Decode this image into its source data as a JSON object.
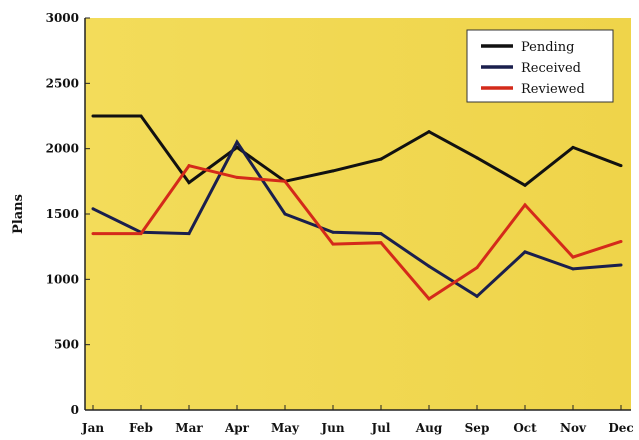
{
  "chart_data": {
    "type": "line",
    "title": "",
    "xlabel": "",
    "ylabel": "Plans",
    "categories": [
      "Jan",
      "Feb",
      "Mar",
      "Apr",
      "May",
      "Jun",
      "Jul",
      "Aug",
      "Sep",
      "Oct",
      "Nov",
      "Dec"
    ],
    "ylim": [
      0,
      3000
    ],
    "yticks": [
      0,
      500,
      1000,
      1500,
      2000,
      2500,
      3000
    ],
    "grid": false,
    "legend_position": "top-right",
    "plot_background": "#f2d84c",
    "series": [
      {
        "name": "Pending",
        "color": "#111111",
        "values": [
          2250,
          2250,
          1740,
          2010,
          1750,
          1830,
          1920,
          2130,
          1930,
          1720,
          2010,
          1870
        ]
      },
      {
        "name": "Received",
        "color": "#1a1f4d",
        "values": [
          1540,
          1360,
          1350,
          2050,
          1500,
          1360,
          1350,
          1100,
          870,
          1210,
          1080,
          1110
        ]
      },
      {
        "name": "Reviewed",
        "color": "#d42a1a",
        "values": [
          1350,
          1350,
          1870,
          1780,
          1750,
          1270,
          1280,
          850,
          1090,
          1570,
          1170,
          1290
        ]
      }
    ]
  }
}
